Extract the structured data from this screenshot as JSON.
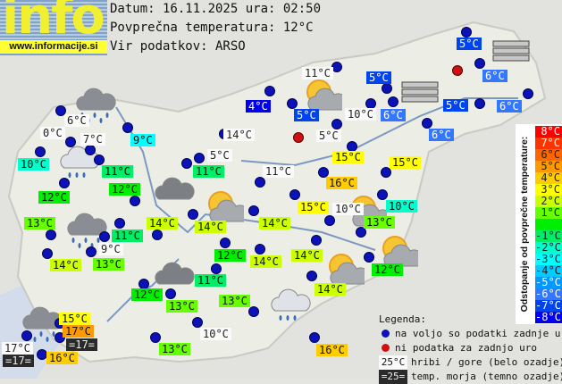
{
  "logo": {
    "text": "info",
    "url": "www.informacije.si"
  },
  "header": {
    "date_line": "Datum: 16.11.2025 ura: 02:50",
    "avg_line": "Povprečna temperatura: 12°C",
    "source_line": "Vir podatkov: ARSO"
  },
  "average_temperature": 12,
  "scale": {
    "title": "Odstopanje od povprečne temperature:",
    "rows": [
      {
        "label": "8°C",
        "color": "#ff0000"
      },
      {
        "label": "7°C",
        "color": "#ff3300"
      },
      {
        "label": "6°C",
        "color": "#ff6600"
      },
      {
        "label": "5°C",
        "color": "#ff9900"
      },
      {
        "label": "4°C",
        "color": "#ffcc00"
      },
      {
        "label": "3°C",
        "color": "#ffff00"
      },
      {
        "label": "2°C",
        "color": "#ccff00"
      },
      {
        "label": "1°C",
        "color": "#66ff00"
      },
      {
        "label": "",
        "color": "#00ee00"
      },
      {
        "label": "-1°C",
        "color": "#00ee66"
      },
      {
        "label": "-2°C",
        "color": "#00ffcc"
      },
      {
        "label": "-3°C",
        "color": "#00ffff"
      },
      {
        "label": "-4°C",
        "color": "#00ccff"
      },
      {
        "label": "-5°C",
        "color": "#0099ff"
      },
      {
        "label": "-6°C",
        "color": "#3377ff"
      },
      {
        "label": "-7°C",
        "color": "#0044ee"
      },
      {
        "label": "-8°C",
        "color": "#0000ee"
      }
    ]
  },
  "legend": {
    "title": "Legenda:",
    "blue_dot": "na voljo so podatki zadnje ure",
    "red_dot": "ni podatka za zadnjo uro",
    "mountain_sample": "25°C",
    "mountain_text": "hribi / gore (belo ozadje)",
    "sea_sample": "=25=",
    "sea_text": "temp. morja (temno ozadje)",
    "blue_color": "#0a12b8",
    "red_color": "#d01010"
  },
  "stations": [
    {
      "temp": "6°C",
      "type": "mountain"
    },
    {
      "temp": "0°C",
      "type": "mountain"
    },
    {
      "temp": "7°C",
      "type": "mountain"
    },
    {
      "temp": "14°C",
      "type": "mountain"
    },
    {
      "temp": "5°C",
      "type": "mountain"
    },
    {
      "temp": "11°C",
      "type": "mountain"
    },
    {
      "temp": "10°C",
      "type": "mountain"
    },
    {
      "temp": "5°C",
      "type": "mountain"
    },
    {
      "temp": "11°C",
      "type": "mountain"
    },
    {
      "temp": "10°C",
      "type": "mountain"
    },
    {
      "temp": "9°C",
      "type": "mountain"
    },
    {
      "temp": "10°C",
      "type": "mountain"
    },
    {
      "temp": "17°C",
      "type": "mountain"
    },
    {
      "temp": "9°C",
      "type": "valley"
    },
    {
      "temp": "10°C",
      "type": "valley"
    },
    {
      "temp": "11°C",
      "type": "valley"
    },
    {
      "temp": "11°C",
      "type": "valley"
    },
    {
      "temp": "12°C",
      "type": "valley"
    },
    {
      "temp": "12°C",
      "type": "valley"
    },
    {
      "temp": "13°C",
      "type": "valley"
    },
    {
      "temp": "14°C",
      "type": "valley"
    },
    {
      "temp": "14°C",
      "type": "valley"
    },
    {
      "temp": "11°C",
      "type": "valley"
    },
    {
      "temp": "14°C",
      "type": "valley"
    },
    {
      "temp": "14°C",
      "type": "valley"
    },
    {
      "temp": "13°C",
      "type": "valley"
    },
    {
      "temp": "12°C",
      "type": "valley"
    },
    {
      "temp": "14°C",
      "type": "valley"
    },
    {
      "temp": "14°C",
      "type": "valley"
    },
    {
      "temp": "12°C",
      "type": "valley"
    },
    {
      "temp": "13°C",
      "type": "valley"
    },
    {
      "temp": "11°C",
      "type": "valley"
    },
    {
      "temp": "13°C",
      "type": "valley"
    },
    {
      "temp": "13°C",
      "type": "valley"
    },
    {
      "temp": "14°C",
      "type": "valley"
    },
    {
      "temp": "12°C",
      "type": "valley"
    },
    {
      "temp": "15°C",
      "type": "valley"
    },
    {
      "temp": "17°C",
      "type": "valley"
    },
    {
      "temp": "16°C",
      "type": "valley"
    },
    {
      "temp": "16°C",
      "type": "valley"
    },
    {
      "temp": "15°C",
      "type": "valley"
    },
    {
      "temp": "15°C",
      "type": "valley"
    },
    {
      "temp": "15°C",
      "type": "valley"
    },
    {
      "temp": "16°C",
      "type": "valley"
    },
    {
      "temp": "13°C",
      "type": "valley"
    },
    {
      "temp": "10°C",
      "type": "valley"
    },
    {
      "temp": "4°C",
      "type": "valley"
    },
    {
      "temp": "5°C",
      "type": "valley"
    },
    {
      "temp": "5°C",
      "type": "valley"
    },
    {
      "temp": "6°C",
      "type": "valley"
    },
    {
      "temp": "5°C",
      "type": "valley"
    },
    {
      "temp": "6°C",
      "type": "valley"
    },
    {
      "temp": "6°C",
      "type": "valley"
    },
    {
      "temp": "5°C",
      "type": "valley"
    },
    {
      "temp": "6°C",
      "type": "valley"
    },
    {
      "temp": "=17=",
      "type": "sea"
    },
    {
      "temp": "=17=",
      "type": "sea"
    }
  ],
  "weather_icons": [
    "rain",
    "light-rain",
    "rain",
    "rain",
    "overcast",
    "overcast",
    "partly-cloudy",
    "partly-cloudy",
    "partly-cloudy",
    "partly-cloudy",
    "partly-cloudy",
    "fog",
    "fog",
    "light-rain"
  ]
}
